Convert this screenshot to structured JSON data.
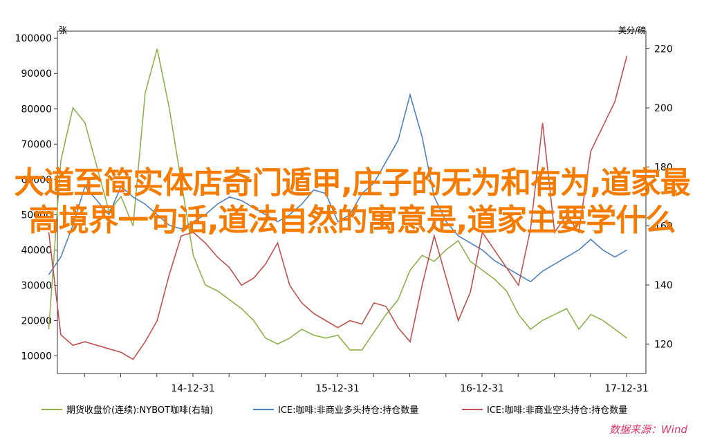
{
  "overlay_title": "大道至简实体店奇门遁甲,庄子的无为和有为,道家最高境界一句话,道法自然的寓意是,道家主要学什么",
  "source_label": "数据来源：Wind",
  "chart_data": {
    "type": "line",
    "left_axis": {
      "unit": "张",
      "ylim": [
        5000,
        102000
      ],
      "ticks": [
        10000,
        20000,
        30000,
        40000,
        50000,
        60000,
        70000,
        80000,
        90000,
        100000
      ]
    },
    "right_axis": {
      "unit": "美分/磅",
      "ylim": [
        110,
        226
      ],
      "ticks": [
        120,
        140,
        160,
        180,
        200,
        220
      ]
    },
    "x_ticks": [
      "14-12-31",
      "15-12-31",
      "16-12-31",
      "17-12-31"
    ],
    "grid": false,
    "legend_position": "bottom",
    "series": [
      {
        "name": "期货收盘价(连续):NYBOT咖啡(右轴)",
        "axis": "right",
        "color": "#8db14a",
        "x": [
          "14-01",
          "14-02",
          "14-03",
          "14-04",
          "14-05",
          "14-06",
          "14-07",
          "14-08",
          "14-09",
          "14-10",
          "14-11",
          "14-12",
          "15-01",
          "15-02",
          "15-03",
          "15-04",
          "15-05",
          "15-06",
          "15-07",
          "15-08",
          "15-09",
          "15-10",
          "15-11",
          "15-12",
          "16-01",
          "16-02",
          "16-03",
          "16-04",
          "16-05",
          "16-06",
          "16-07",
          "16-08",
          "16-09",
          "16-10",
          "16-11",
          "16-12",
          "17-01",
          "17-02",
          "17-03",
          "17-04",
          "17-05",
          "17-06",
          "17-07",
          "17-08",
          "17-09",
          "17-10",
          "17-11",
          "17-12",
          "18-01"
        ],
        "values": [
          125,
          182,
          200,
          195,
          180,
          165,
          170,
          160,
          205,
          220,
          200,
          175,
          150,
          140,
          138,
          135,
          132,
          128,
          122,
          120,
          122,
          125,
          123,
          122,
          123,
          118,
          118,
          124,
          130,
          135,
          145,
          150,
          148,
          152,
          155,
          148,
          145,
          142,
          138,
          130,
          125,
          128,
          130,
          132,
          125,
          130,
          128,
          125,
          122
        ]
      },
      {
        "name": "ICE:咖啡:非商业多头持仓:持仓数量",
        "axis": "left",
        "color": "#4f81bd",
        "x": [
          "14-01",
          "14-02",
          "14-03",
          "14-04",
          "14-05",
          "14-06",
          "14-07",
          "14-08",
          "14-09",
          "14-10",
          "14-11",
          "14-12",
          "15-01",
          "15-02",
          "15-03",
          "15-04",
          "15-05",
          "15-06",
          "15-07",
          "15-08",
          "15-09",
          "15-10",
          "15-11",
          "15-12",
          "16-01",
          "16-02",
          "16-03",
          "16-04",
          "16-05",
          "16-06",
          "16-07",
          "16-08",
          "16-09",
          "16-10",
          "16-11",
          "16-12",
          "17-01",
          "17-02",
          "17-03",
          "17-04",
          "17-05",
          "17-06",
          "17-07",
          "17-08",
          "17-09",
          "17-10",
          "17-11",
          "17-12",
          "18-01"
        ],
        "values": [
          33000,
          38000,
          47000,
          58000,
          54000,
          50000,
          58000,
          55000,
          53000,
          50000,
          47000,
          46000,
          48000,
          50000,
          53000,
          55000,
          54000,
          52000,
          50000,
          48000,
          50000,
          53000,
          57000,
          56000,
          48000,
          50000,
          56000,
          59000,
          65000,
          71000,
          84000,
          72000,
          55000,
          48000,
          44000,
          42000,
          40000,
          37000,
          35000,
          33000,
          31000,
          34000,
          36000,
          38000,
          40000,
          43000,
          40000,
          38000,
          40000
        ]
      },
      {
        "name": "ICE:咖啡:非商业空头持仓:持仓数量",
        "axis": "left",
        "color": "#c0504d",
        "x": [
          "14-01",
          "14-02",
          "14-03",
          "14-04",
          "14-05",
          "14-06",
          "14-07",
          "14-08",
          "14-09",
          "14-10",
          "14-11",
          "14-12",
          "15-01",
          "15-02",
          "15-03",
          "15-04",
          "15-05",
          "15-06",
          "15-07",
          "15-08",
          "15-09",
          "15-10",
          "15-11",
          "15-12",
          "16-01",
          "16-02",
          "16-03",
          "16-04",
          "16-05",
          "16-06",
          "16-07",
          "16-08",
          "16-09",
          "16-10",
          "16-11",
          "16-12",
          "17-01",
          "17-02",
          "17-03",
          "17-04",
          "17-05",
          "17-06",
          "17-07",
          "17-08",
          "17-09",
          "17-10",
          "17-11",
          "17-12",
          "18-01"
        ],
        "values": [
          45000,
          16000,
          13000,
          14000,
          13000,
          12000,
          11000,
          9000,
          14000,
          20000,
          33000,
          44000,
          45000,
          42000,
          38000,
          35000,
          30000,
          32000,
          36000,
          42000,
          30000,
          25000,
          22000,
          20000,
          18000,
          20000,
          19000,
          25000,
          24000,
          18000,
          14000,
          30000,
          44000,
          32000,
          20000,
          28000,
          45000,
          40000,
          35000,
          30000,
          46000,
          76000,
          45000,
          50000,
          45000,
          68000,
          75000,
          82000,
          95000
        ]
      }
    ]
  }
}
